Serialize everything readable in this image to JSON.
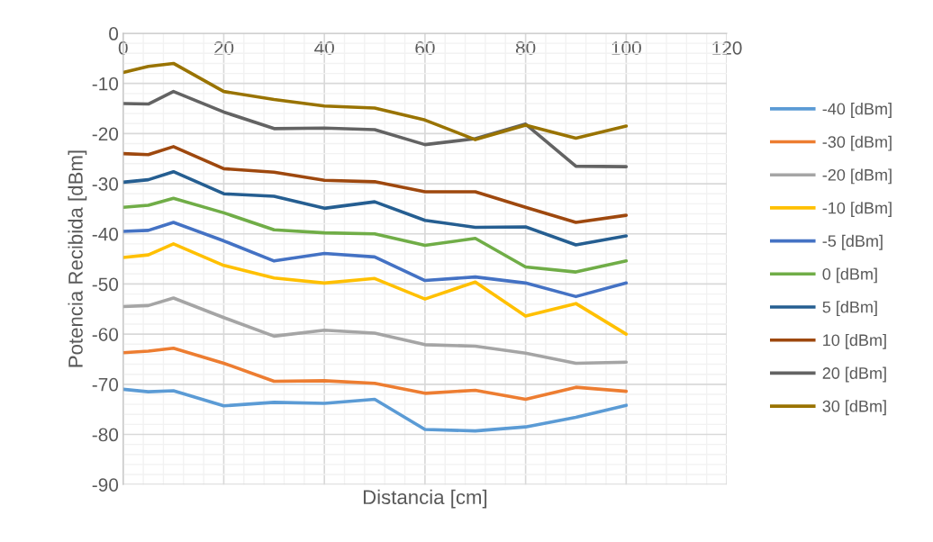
{
  "chart_data": {
    "type": "line",
    "xlabel": "Distancia [cm]",
    "ylabel": "Potencia Recibida [dBm]",
    "x": [
      0,
      5,
      10,
      20,
      30,
      40,
      50,
      60,
      70,
      80,
      90,
      100
    ],
    "xlim": [
      0,
      120
    ],
    "xticks": [
      0,
      20,
      40,
      60,
      80,
      100,
      120
    ],
    "ylim": [
      -90,
      0
    ],
    "yticks": [
      -90,
      -80,
      -70,
      -60,
      -50,
      -40,
      -30,
      -20,
      -10,
      0
    ],
    "grid": true,
    "legend": "right",
    "marker": "none",
    "line_style": "solid",
    "series": [
      {
        "name": "-40 [dBm]",
        "color": "#5b9bd5",
        "values": [
          -71,
          -71.5,
          -71.3,
          -74.3,
          -73.6,
          -73.8,
          -73,
          -79,
          -79.3,
          -78.5,
          -76.6,
          -74.2
        ]
      },
      {
        "name": "-30 [dBm]",
        "color": "#ed7d31",
        "values": [
          -63.7,
          -63.4,
          -62.8,
          -65.8,
          -69.4,
          -69.3,
          -69.8,
          -71.8,
          -71.2,
          -73,
          -70.6,
          -71.4
        ]
      },
      {
        "name": "-20 [dBm]",
        "color": "#a5a5a5",
        "values": [
          -54.5,
          -54.3,
          -52.8,
          -56.7,
          -60.4,
          -59.2,
          -59.8,
          -62.1,
          -62.4,
          -63.8,
          -65.8,
          -65.6
        ]
      },
      {
        "name": "-10 [dBm]",
        "color": "#ffc000",
        "values": [
          -44.7,
          -44.2,
          -42,
          -46.3,
          -48.8,
          -49.8,
          -48.9,
          -53,
          -49.6,
          -56.4,
          -53.9,
          -60
        ]
      },
      {
        "name": "-5 [dBm]",
        "color": "#4472c4",
        "values": [
          -39.5,
          -39.3,
          -37.7,
          -41.4,
          -45.4,
          -43.9,
          -44.6,
          -49.3,
          -48.6,
          -49.8,
          -52.5,
          -49.8
        ]
      },
      {
        "name": "0 [dBm]",
        "color": "#70ad47",
        "values": [
          -34.7,
          -34.3,
          -32.9,
          -35.8,
          -39.2,
          -39.8,
          -40,
          -42.3,
          -40.9,
          -46.6,
          -47.6,
          -45.4
        ]
      },
      {
        "name": "5 [dBm]",
        "color": "#255e91",
        "values": [
          -29.7,
          -29.2,
          -27.6,
          -32,
          -32.5,
          -34.9,
          -33.6,
          -37.3,
          -38.7,
          -38.6,
          -42.2,
          -40.4
        ]
      },
      {
        "name": "10 [dBm]",
        "color": "#9e480e",
        "values": [
          -24,
          -24.2,
          -22.6,
          -27,
          -27.7,
          -29.3,
          -29.6,
          -31.6,
          -31.6,
          -34.7,
          -37.7,
          -36.3
        ]
      },
      {
        "name": "20 [dBm]",
        "color": "#636363",
        "values": [
          -14,
          -14.1,
          -11.6,
          -15.7,
          -19,
          -18.9,
          -19.2,
          -22.2,
          -21,
          -18.1,
          -26.5,
          -26.6
        ]
      },
      {
        "name": "30 [dBm]",
        "color": "#997300",
        "values": [
          -7.8,
          -6.6,
          -6,
          -11.6,
          -13.2,
          -14.5,
          -14.9,
          -17.3,
          -21.2,
          -18.3,
          -20.9,
          -18.5
        ]
      }
    ]
  }
}
